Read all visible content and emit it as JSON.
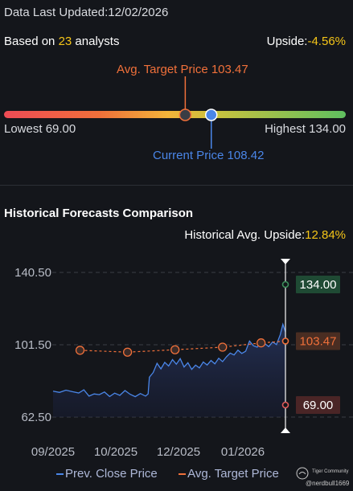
{
  "header": {
    "updated_label": "Data Last Updated:12/02/2026",
    "based_prefix": "Based on",
    "analyst_count": "23",
    "based_suffix": "analysts",
    "upside_label": "Upside:",
    "upside_value": "-4.56%"
  },
  "target": {
    "avg_label": "Avg. Target Price 103.47",
    "current_label": "Current Price 108.42",
    "lowest_label": "Lowest 69.00",
    "highest_label": "Highest 134.00",
    "low": 69.0,
    "high": 134.0,
    "avg": 103.47,
    "current": 108.42,
    "colors": {
      "avg": "#f0703a",
      "current": "#4a86e8",
      "low": "#ee4b55",
      "high": "#5fbf5f"
    }
  },
  "history": {
    "title": "Historical Forecasts Comparison",
    "upside_label": "Historical Avg. Upside:",
    "upside_value": "12.84%"
  },
  "chart_data": {
    "type": "line",
    "x_ticks": [
      "09/2025",
      "10/2025",
      "12/2025",
      "01/2026"
    ],
    "y_ticks": [
      "140.50",
      "101.50",
      "62.50"
    ],
    "ylim": [
      62.5,
      140.5
    ],
    "grid": true,
    "legend_position": "bottom",
    "series": [
      {
        "name": "Prev. Close Price",
        "color": "#4a86e8",
        "points": [
          [
            "2025-08-15",
            76.5
          ],
          [
            "2025-08-20",
            75.8
          ],
          [
            "2025-08-25",
            77.0
          ],
          [
            "2025-08-30",
            76.2
          ],
          [
            "2025-09-04",
            75.5
          ],
          [
            "2025-09-08",
            77.2
          ],
          [
            "2025-09-12",
            73.8
          ],
          [
            "2025-09-16",
            75.0
          ],
          [
            "2025-09-20",
            74.6
          ],
          [
            "2025-09-24",
            76.0
          ],
          [
            "2025-09-28",
            73.6
          ],
          [
            "2025-10-02",
            75.4
          ],
          [
            "2025-10-06",
            74.2
          ],
          [
            "2025-10-10",
            76.8
          ],
          [
            "2025-10-14",
            74.8
          ],
          [
            "2025-10-18",
            73.5
          ],
          [
            "2025-10-22",
            75.2
          ],
          [
            "2025-10-26",
            73.8
          ],
          [
            "2025-10-28",
            75.0
          ],
          [
            "2025-10-29",
            84.0
          ],
          [
            "2025-11-01",
            86.5
          ],
          [
            "2025-11-04",
            91.5
          ],
          [
            "2025-11-07",
            88.5
          ],
          [
            "2025-11-10",
            92.0
          ],
          [
            "2025-11-13",
            90.0
          ],
          [
            "2025-11-16",
            93.5
          ],
          [
            "2025-11-19",
            91.0
          ],
          [
            "2025-11-22",
            94.0
          ],
          [
            "2025-11-25",
            89.5
          ],
          [
            "2025-11-28",
            91.8
          ],
          [
            "2025-12-01",
            88.2
          ],
          [
            "2025-12-04",
            90.5
          ],
          [
            "2025-12-07",
            89.0
          ],
          [
            "2025-12-10",
            92.2
          ],
          [
            "2025-12-13",
            90.6
          ],
          [
            "2025-12-16",
            93.0
          ],
          [
            "2025-12-19",
            91.2
          ],
          [
            "2025-12-22",
            94.2
          ],
          [
            "2025-12-25",
            92.4
          ],
          [
            "2025-12-28",
            95.0
          ],
          [
            "2025-12-31",
            97.0
          ],
          [
            "2026-01-03",
            96.0
          ],
          [
            "2026-01-06",
            98.6
          ],
          [
            "2026-01-09",
            96.8
          ],
          [
            "2026-01-12",
            98.0
          ],
          [
            "2026-01-15",
            103.5
          ],
          [
            "2026-01-18",
            101.0
          ],
          [
            "2026-01-21",
            100.2
          ],
          [
            "2026-01-24",
            104.0
          ],
          [
            "2026-01-27",
            102.0
          ],
          [
            "2026-01-30",
            100.5
          ],
          [
            "2026-02-02",
            103.0
          ],
          [
            "2026-02-05",
            101.6
          ],
          [
            "2026-02-08",
            107.0
          ],
          [
            "2026-02-10",
            112.5
          ],
          [
            "2026-02-12",
            108.42
          ]
        ]
      },
      {
        "name": "Avg. Target Price",
        "color": "#f0703a",
        "points": [
          [
            "2025-09-05",
            98.5
          ],
          [
            "2025-10-12",
            97.5
          ],
          [
            "2025-11-18",
            98.8
          ],
          [
            "2025-12-25",
            100.2
          ],
          [
            "2026-01-24",
            102.5
          ],
          [
            "2026-02-12",
            103.47
          ]
        ]
      }
    ],
    "markers": {
      "high": {
        "value": 134.0,
        "label": "134.00",
        "color": "#3d8f5c"
      },
      "avg": {
        "value": 103.47,
        "label": "103.47",
        "color": "#f0703a"
      },
      "low": {
        "value": 69.0,
        "label": "69.00",
        "color": "#e05a5a"
      }
    }
  },
  "legend": {
    "close_label": "Prev. Close Price",
    "target_label": "Avg. Target Price"
  },
  "watermark": {
    "brand": "Tiger Community",
    "user": "@nerdbull1669"
  }
}
